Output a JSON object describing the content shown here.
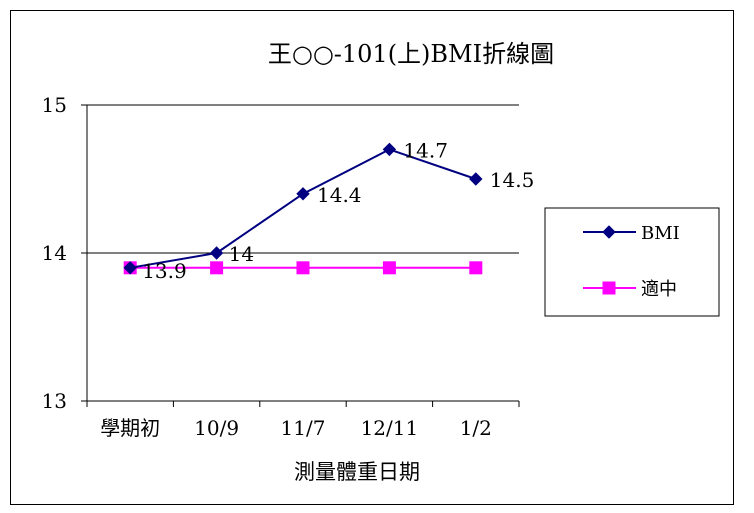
{
  "chart_data": {
    "type": "line",
    "title": "王○○-101(上)BMI折線圖",
    "xlabel": "測量體重日期",
    "ylabel": "",
    "categories": [
      "學期初",
      "10/9",
      "11/7",
      "12/11",
      "1/2"
    ],
    "ylim": [
      13,
      15
    ],
    "yticks": [
      "13",
      "14",
      "15"
    ],
    "grid": true,
    "legend_position": "right",
    "series": [
      {
        "name": "BMI",
        "values": [
          13.9,
          14,
          14.4,
          14.7,
          14.5
        ],
        "labels": [
          "13.9",
          "14",
          "14.4",
          "14.7",
          "14.5"
        ],
        "color": "#000080",
        "marker": "diamond"
      },
      {
        "name": "適中",
        "values": [
          13.9,
          13.9,
          13.9,
          13.9,
          13.9
        ],
        "color": "#FF00FF",
        "marker": "square"
      }
    ]
  }
}
